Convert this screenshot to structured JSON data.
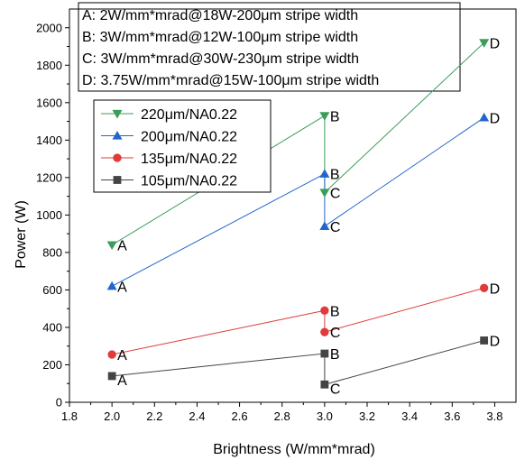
{
  "chart_data": {
    "type": "line",
    "xlabel": "Brightness (W/mm*mrad)",
    "ylabel": "Power (W)",
    "xlim": [
      1.8,
      3.9
    ],
    "ylim": [
      0,
      2100
    ],
    "x_ticks": [
      "1.8",
      "2.0",
      "2.2",
      "2.4",
      "2.6",
      "2.8",
      "3.0",
      "3.2",
      "3.4",
      "3.6",
      "3.8"
    ],
    "y_ticks": [
      "0",
      "200",
      "400",
      "600",
      "800",
      "1000",
      "1200",
      "1400",
      "1600",
      "1800",
      "2000"
    ],
    "grid": false,
    "legend_position": "top-left",
    "annotations": [
      "A: 2W/mm*mrad@18W-200μm stripe width",
      "B: 3W/mm*mrad@12W-100μm stripe width",
      "C: 3W/mm*mrad@30W-230μm stripe width",
      "D: 3.75W/mm*mrad@15W-100μm stripe width"
    ],
    "series": [
      {
        "name": "220μm/NA0.22",
        "marker": "triangle-down",
        "color": "#3a9e5a",
        "points": [
          {
            "x": 2.0,
            "y": 840,
            "label": "A"
          },
          {
            "x": 3.0,
            "y": 1530,
            "label": "B"
          },
          {
            "x": 3.0,
            "y": 1120,
            "label": "C"
          },
          {
            "x": 3.75,
            "y": 1920,
            "label": "D"
          }
        ]
      },
      {
        "name": "200μm/NA0.22",
        "marker": "triangle-up",
        "color": "#2266cc",
        "points": [
          {
            "x": 2.0,
            "y": 620,
            "label": "A"
          },
          {
            "x": 3.0,
            "y": 1220,
            "label": "B"
          },
          {
            "x": 3.0,
            "y": 940,
            "label": "C"
          },
          {
            "x": 3.75,
            "y": 1520,
            "label": "D"
          }
        ]
      },
      {
        "name": "135μm/NA0.22",
        "marker": "circle",
        "color": "#e03a3a",
        "points": [
          {
            "x": 2.0,
            "y": 255,
            "label": "A"
          },
          {
            "x": 3.0,
            "y": 490,
            "label": "B"
          },
          {
            "x": 3.0,
            "y": 375,
            "label": "C"
          },
          {
            "x": 3.75,
            "y": 610,
            "label": "D"
          }
        ]
      },
      {
        "name": "105μm/NA0.22",
        "marker": "square",
        "color": "#444444",
        "points": [
          {
            "x": 2.0,
            "y": 140,
            "label": "A"
          },
          {
            "x": 3.0,
            "y": 260,
            "label": "B"
          },
          {
            "x": 3.0,
            "y": 95,
            "label": "C"
          },
          {
            "x": 3.75,
            "y": 330,
            "label": "D"
          }
        ]
      }
    ]
  }
}
